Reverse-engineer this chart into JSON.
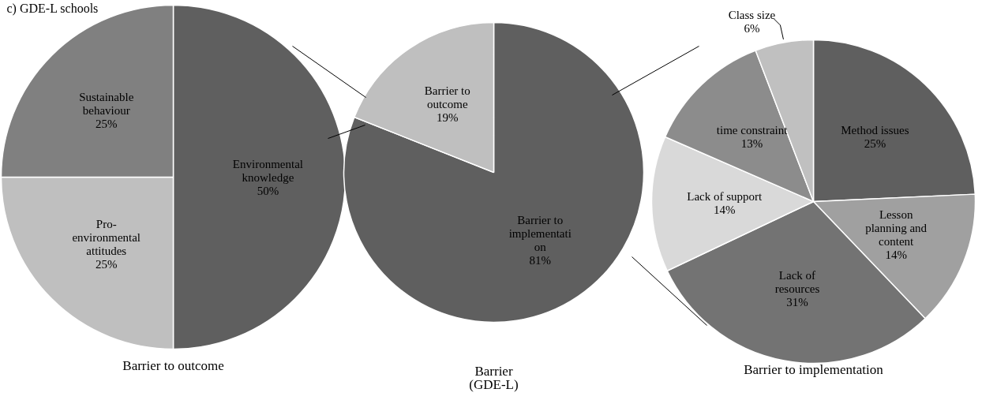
{
  "chart_data": [
    {
      "type": "pie",
      "annotations": [
        "c) GDE-L schools"
      ],
      "xlabel": "Barrier to outcome",
      "categories": [
        "Environmental\nknowledge",
        "Pro-\nenvironmental\nattitudes",
        "Sustainable\nbehaviour"
      ],
      "values": [
        50,
        25,
        25
      ],
      "value_labels": [
        "50%",
        "25%",
        "25%"
      ],
      "colors": [
        "#5f5f5f",
        "#bfbfbf",
        "#808080"
      ]
    },
    {
      "type": "pie",
      "xlabel": "Barrier\n(GDE-L)",
      "categories": [
        "Barrier to\nimplementati\non",
        "Barrier to\noutcome"
      ],
      "values": [
        81,
        19
      ],
      "value_labels": [
        "81%",
        "19%"
      ],
      "colors": [
        "#5f5f5f",
        "#bfbfbf"
      ]
    },
    {
      "type": "pie",
      "xlabel": "Barrier to implementation",
      "categories": [
        "Method issues",
        "Lesson\nplanning and\ncontent",
        "Lack of\nresources",
        "Lack of support",
        "time constraint",
        "Class size"
      ],
      "values": [
        25,
        14,
        31,
        14,
        13,
        6
      ],
      "value_labels": [
        "25%",
        "14%",
        "31%",
        "14%",
        "13%",
        "6%"
      ],
      "colors": [
        "#5f5f5f",
        "#a0a0a0",
        "#737373",
        "#d9d9d9",
        "#8c8c8c",
        "#c0c0c0"
      ]
    }
  ]
}
